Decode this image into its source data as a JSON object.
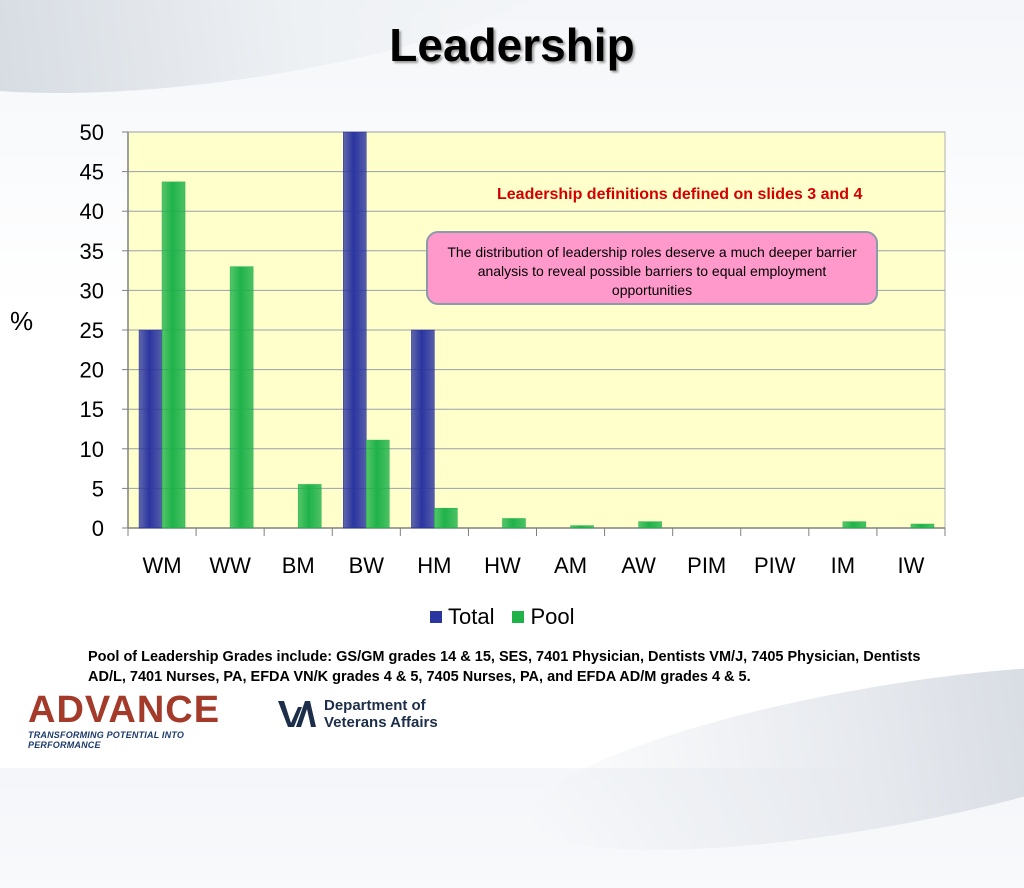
{
  "slide": {
    "title": "Leadership",
    "annotation": "Leadership definitions defined on slides 3 and 4",
    "callout": "The distribution of leadership roles deserve a much deeper barrier analysis to reveal possible barriers to equal employment opportunities",
    "footnote": "Pool of Leadership Grades include: GS/GM grades 14 & 15, SES, 7401 Physician, Dentists VM/J, 7405 Physician, Dentists AD/L, 7401 Nurses, PA, EFDA VN/K grades 4 & 5, 7405 Nurses, PA, and EFDA AD/M grades 4 & 5."
  },
  "logos": {
    "advance_word": "ADVANCE",
    "advance_tagline": "TRANSFORMING POTENTIAL INTO PERFORMANCE",
    "va_line1": "Department of",
    "va_line2": "Veterans Affairs"
  },
  "chart_data": {
    "type": "bar",
    "categories": [
      "WM",
      "WW",
      "BM",
      "BW",
      "HM",
      "HW",
      "AM",
      "AW",
      "PIM",
      "PIW",
      "IM",
      "IW"
    ],
    "series": [
      {
        "name": "Total",
        "color": "#2b35a0",
        "values": [
          25,
          0,
          0,
          50,
          25,
          0,
          0,
          0,
          0,
          0,
          0,
          0
        ]
      },
      {
        "name": "Pool",
        "color": "#1fb24a",
        "values": [
          43.7,
          33,
          5.5,
          11.1,
          2.5,
          1.2,
          0.3,
          0.8,
          0,
          0,
          0.8,
          0.5
        ]
      }
    ],
    "ylim": [
      0,
      50
    ],
    "yticks": [
      0,
      5,
      10,
      15,
      20,
      25,
      30,
      35,
      40,
      45,
      50
    ],
    "ylabel": "%",
    "grid": true,
    "legend": "bottom",
    "plot_background": "#ffffcc"
  }
}
